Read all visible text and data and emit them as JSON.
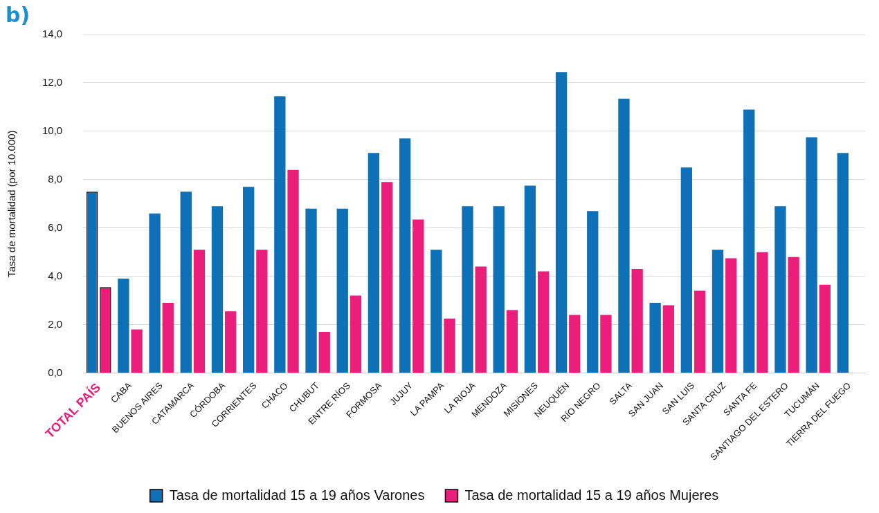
{
  "chart_data": {
    "type": "bar",
    "title": "b)",
    "ylabel": "Tasa de mortalidad (por 10.000)",
    "categories": [
      "TOTAL PAÍS",
      "CABA",
      "BUENOS AIRES",
      "CATAMARCA",
      "CÓRDOBA",
      "CORRIENTES",
      "CHACO",
      "CHUBUT",
      "ENTRE RÍOS",
      "FORMOSA",
      "JUJUY",
      "LA PAMPA",
      "LA RIOJA",
      "MENDOZA",
      "MISIONES",
      "NEUQUÉN",
      "RÍO NEGRO",
      "SALTA",
      "SAN JUAN",
      "SAN LUIS",
      "SANTA CRUZ",
      "SANTA FE",
      "SANTIAGO DEL ESTERO",
      "TUCUMÁN",
      "TIERRA DEL FUEGO"
    ],
    "series": [
      {
        "name": "Tasa de mortalidad 15 a 19 años Varones",
        "color": "#0e71b8",
        "values": [
          7.5,
          3.9,
          6.6,
          7.5,
          6.9,
          7.7,
          11.45,
          6.8,
          6.8,
          9.1,
          9.7,
          5.1,
          6.9,
          6.9,
          7.75,
          12.45,
          6.7,
          11.35,
          2.9,
          8.5,
          5.1,
          10.9,
          6.9,
          9.75,
          9.1
        ]
      },
      {
        "name": "Tasa de mortalidad 15 a 19 años Mujeres",
        "color": "#ec1e7b",
        "values": [
          3.55,
          1.8,
          2.9,
          5.1,
          2.55,
          5.1,
          8.4,
          1.7,
          3.2,
          7.9,
          6.35,
          2.25,
          4.4,
          2.6,
          4.2,
          2.4,
          2.4,
          4.3,
          2.8,
          3.4,
          4.75,
          5.0,
          4.8,
          3.65,
          null
        ]
      }
    ],
    "ylim": [
      0,
      14
    ],
    "yticks": [
      {
        "value": 0,
        "label": "0,0"
      },
      {
        "value": 2,
        "label": "2,0"
      },
      {
        "value": 4,
        "label": "4,0"
      },
      {
        "value": 6,
        "label": "6,0"
      },
      {
        "value": 8,
        "label": "8,0"
      },
      {
        "value": 10,
        "label": "10,0"
      },
      {
        "value": 12,
        "label": "12,0"
      },
      {
        "value": 14,
        "label": "14,0"
      }
    ],
    "grid": "y",
    "legend": "bottom"
  }
}
